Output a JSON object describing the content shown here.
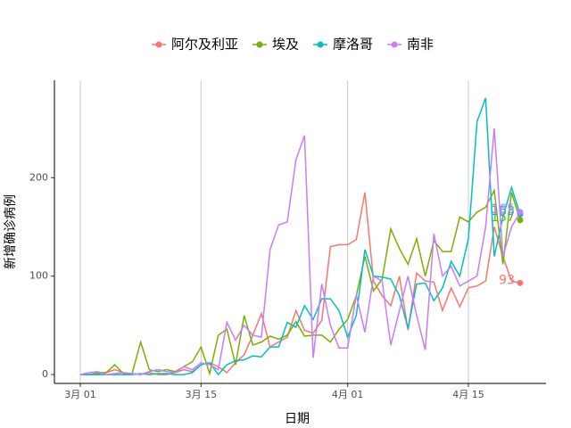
{
  "chart_data": {
    "type": "line",
    "x_label": "日期",
    "y_label": "新增确诊病例",
    "x": [
      "03-01",
      "03-02",
      "03-03",
      "03-04",
      "03-05",
      "03-06",
      "03-07",
      "03-08",
      "03-09",
      "03-10",
      "03-11",
      "03-12",
      "03-13",
      "03-14",
      "03-15",
      "03-16",
      "03-17",
      "03-18",
      "03-19",
      "03-20",
      "03-21",
      "03-22",
      "03-23",
      "03-24",
      "03-25",
      "03-26",
      "03-27",
      "03-28",
      "03-29",
      "03-30",
      "03-31",
      "04-01",
      "04-02",
      "04-03",
      "04-04",
      "04-05",
      "04-06",
      "04-07",
      "04-08",
      "04-09",
      "04-10",
      "04-11",
      "04-12",
      "04-13",
      "04-14",
      "04-15",
      "04-16",
      "04-17",
      "04-18",
      "04-19",
      "04-20",
      "04-21"
    ],
    "series": [
      {
        "name": "阿尔及利亚",
        "color": "#F8766D",
        "values": [
          0,
          0,
          2,
          2,
          5,
          2,
          1,
          0,
          2,
          0,
          0,
          2,
          5,
          3,
          10,
          12,
          8,
          2,
          12,
          20,
          40,
          62,
          28,
          33,
          38,
          65,
          45,
          42,
          55,
          130,
          132,
          132,
          137,
          185,
          95,
          80,
          70,
          100,
          45,
          103,
          95,
          94,
          65,
          88,
          69,
          88,
          90,
          95,
          150,
          120,
          95,
          93
        ]
      },
      {
        "name": "埃及",
        "color": "#7CAE00",
        "values": [
          0,
          0,
          1,
          2,
          10,
          1,
          1,
          33,
          5,
          3,
          5,
          3,
          8,
          13,
          28,
          1,
          40,
          46,
          10,
          60,
          30,
          33,
          39,
          36,
          40,
          54,
          39,
          40,
          40,
          33,
          46,
          56,
          80,
          120,
          85,
          97,
          148,
          128,
          112,
          138,
          100,
          136,
          125,
          125,
          160,
          155,
          165,
          170,
          187,
          112,
          185,
          157
        ]
      },
      {
        "name": "摩洛哥",
        "color": "#00BFC4",
        "values": [
          0,
          0,
          0,
          0,
          0,
          0,
          0,
          1,
          0,
          1,
          1,
          0,
          0,
          2,
          10,
          12,
          0,
          10,
          14,
          15,
          19,
          18,
          28,
          28,
          53,
          48,
          70,
          56,
          77,
          77,
          65,
          38,
          60,
          127,
          100,
          99,
          97,
          80,
          47,
          92,
          93,
          75,
          88,
          115,
          100,
          138,
          257,
          281,
          120,
          160,
          190,
          163
        ]
      },
      {
        "name": "南非",
        "color": "#C77CFF",
        "values": [
          0,
          2,
          3,
          0,
          1,
          2,
          1,
          0,
          3,
          5,
          3,
          2,
          8,
          5,
          12,
          10,
          5,
          53,
          35,
          50,
          40,
          38,
          127,
          152,
          155,
          218,
          243,
          17,
          92,
          50,
          27,
          27,
          81,
          43,
          100,
          95,
          30,
          65,
          100,
          60,
          25,
          143,
          100,
          110,
          90,
          95,
          100,
          150,
          250,
          120,
          150,
          165
        ]
      }
    ],
    "xlim": [
      "02-27",
      "04-24"
    ],
    "xticks": [
      {
        "value": "03-01",
        "label": "3月 01"
      },
      {
        "value": "03-15",
        "label": "3月 15"
      },
      {
        "value": "04-01",
        "label": "4月 01"
      },
      {
        "value": "04-15",
        "label": "4月 15"
      }
    ],
    "ylim": [
      -9,
      299
    ],
    "yticks": [
      0,
      100,
      200
    ],
    "grid": "x",
    "legend": "top",
    "label_last": true
  }
}
